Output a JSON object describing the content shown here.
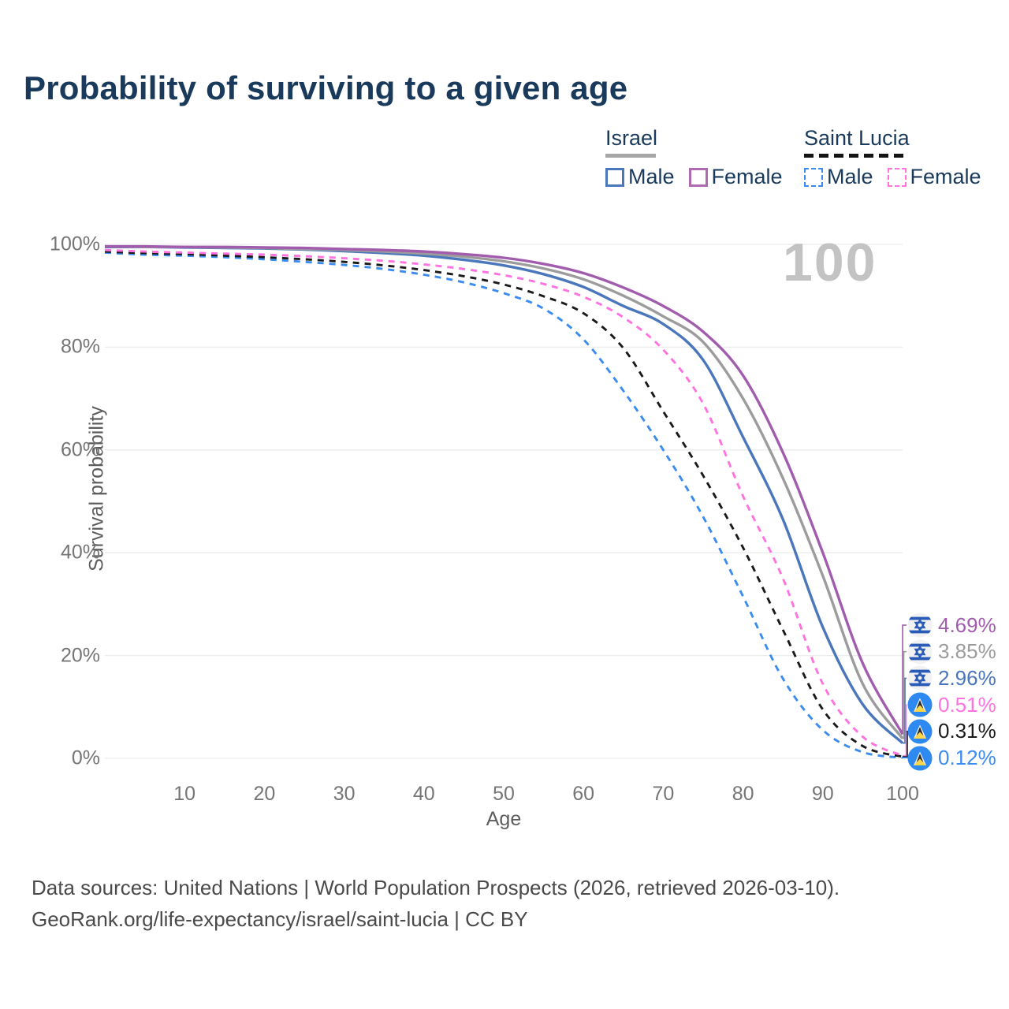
{
  "title": "Probability of surviving to a given age",
  "watermark": "100",
  "legend": {
    "groups": [
      {
        "name": "Israel",
        "line_style": "solid",
        "underline_color": "#a6a6a6",
        "items": [
          {
            "label": "Male",
            "swatch_color": "#4a76bc",
            "dashed": false
          },
          {
            "label": "Female",
            "swatch_color": "#b06ab0",
            "dashed": false
          }
        ]
      },
      {
        "name": "Saint Lucia",
        "line_style": "dashed",
        "underline_color": "#141414",
        "items": [
          {
            "label": "Male",
            "swatch_color": "#3b8cf0",
            "dashed": true
          },
          {
            "label": "Female",
            "swatch_color": "#ff72df",
            "dashed": true
          }
        ]
      }
    ]
  },
  "chart_data": {
    "type": "line",
    "title": "Probability of surviving to a given age",
    "xlabel": "Age",
    "ylabel": "Survival probability",
    "xlim": [
      0,
      100
    ],
    "ylim": [
      0,
      100
    ],
    "grid": "horizontal",
    "legend_position": "top-right",
    "x_ticks": [
      10,
      20,
      30,
      40,
      50,
      60,
      70,
      80,
      90,
      100
    ],
    "x_tick_labels": [
      "10",
      "20",
      "30",
      "40",
      "50",
      "60",
      "70",
      "80",
      "90",
      "100"
    ],
    "y_ticks": [
      0,
      20,
      40,
      60,
      80,
      100
    ],
    "y_tick_labels": [
      "0%",
      "20%",
      "40%",
      "60%",
      "80%",
      "100%"
    ],
    "x": [
      0,
      5,
      10,
      15,
      20,
      25,
      30,
      35,
      40,
      45,
      50,
      55,
      60,
      65,
      70,
      75,
      80,
      85,
      90,
      95,
      100
    ],
    "series": [
      {
        "name": "Israel Female",
        "country": "Israel",
        "sex": "Female",
        "color": "#a15cae",
        "dashed": false,
        "flag": "israel",
        "end_label": "4.69%",
        "end_value": 4.69,
        "values": [
          99.6,
          99.6,
          99.5,
          99.5,
          99.4,
          99.3,
          99.1,
          98.9,
          98.6,
          98.1,
          97.4,
          96.2,
          94.4,
          91.6,
          88,
          83,
          74.5,
          59.5,
          40,
          18.5,
          4.69
        ]
      },
      {
        "name": "Israel Both sexes",
        "country": "Israel",
        "sex": "Both",
        "color": "#9c9c9c",
        "dashed": false,
        "flag": "israel",
        "end_label": "3.85%",
        "end_value": 3.85,
        "values": [
          99.6,
          99.5,
          99.5,
          99.4,
          99.3,
          99.1,
          98.9,
          98.6,
          98.2,
          97.6,
          96.7,
          95.3,
          93.2,
          90,
          86,
          81,
          70,
          54.5,
          35.5,
          14.5,
          3.85
        ]
      },
      {
        "name": "Israel Male",
        "country": "Israel",
        "sex": "Male",
        "color": "#4a76bc",
        "dashed": false,
        "flag": "israel",
        "end_label": "2.96%",
        "end_value": 2.96,
        "values": [
          99.5,
          99.5,
          99.4,
          99.3,
          99.2,
          99,
          98.7,
          98.3,
          97.8,
          97,
          95.9,
          94.2,
          91.7,
          88,
          84.5,
          77.5,
          62.5,
          46.5,
          25.5,
          10.5,
          2.96
        ]
      },
      {
        "name": "Saint Lucia Female",
        "country": "Saint Lucia",
        "sex": "Female",
        "color": "#ff72df",
        "dashed": true,
        "flag": "saint-lucia",
        "end_label": "0.51%",
        "end_value": 0.51,
        "values": [
          98.9,
          98.6,
          98.4,
          98.2,
          98,
          97.7,
          97.3,
          96.8,
          96.1,
          95.2,
          94,
          92.3,
          89.8,
          85.8,
          79.5,
          69,
          51,
          35,
          14.5,
          4.2,
          0.51
        ]
      },
      {
        "name": "Saint Lucia Both sexes",
        "country": "Saint Lucia",
        "sex": "Both",
        "color": "#1a1a1a",
        "dashed": true,
        "flag": "saint-lucia",
        "end_label": "0.31%",
        "end_value": 0.31,
        "values": [
          98.6,
          98.3,
          98.1,
          97.8,
          97.5,
          97.1,
          96.6,
          95.9,
          95,
          93.8,
          92.2,
          89.9,
          86.6,
          79.8,
          67.5,
          55,
          41,
          25,
          9.5,
          2.4,
          0.31
        ]
      },
      {
        "name": "Saint Lucia Male",
        "country": "Saint Lucia",
        "sex": "Male",
        "color": "#3b8cf0",
        "dashed": true,
        "flag": "saint-lucia",
        "end_label": "0.12%",
        "end_value": 0.12,
        "values": [
          98.4,
          98,
          97.8,
          97.5,
          97.1,
          96.6,
          96,
          95.2,
          94.1,
          92.6,
          90.5,
          87.5,
          81.5,
          71.5,
          60,
          47,
          31.5,
          15.5,
          5.5,
          1.2,
          0.12
        ]
      }
    ]
  },
  "colors": {
    "title_text": "#1a3a5c",
    "grid": "#ececec",
    "axis_text": "#757575",
    "watermark": "#c3c3c3",
    "footer_text": "#4a4a4a",
    "israel_flag_blue": "#2a5bb8",
    "saint_lucia_flag_blue": "#2e8af0",
    "saint_lucia_flag_yellow": "#ffd54a"
  },
  "footer": {
    "line1": "Data sources: United Nations | World Population Prospects (2026, retrieved 2026-03-10).",
    "line2": "GeoRank.org/life-expectancy/israel/saint-lucia | CC BY"
  }
}
